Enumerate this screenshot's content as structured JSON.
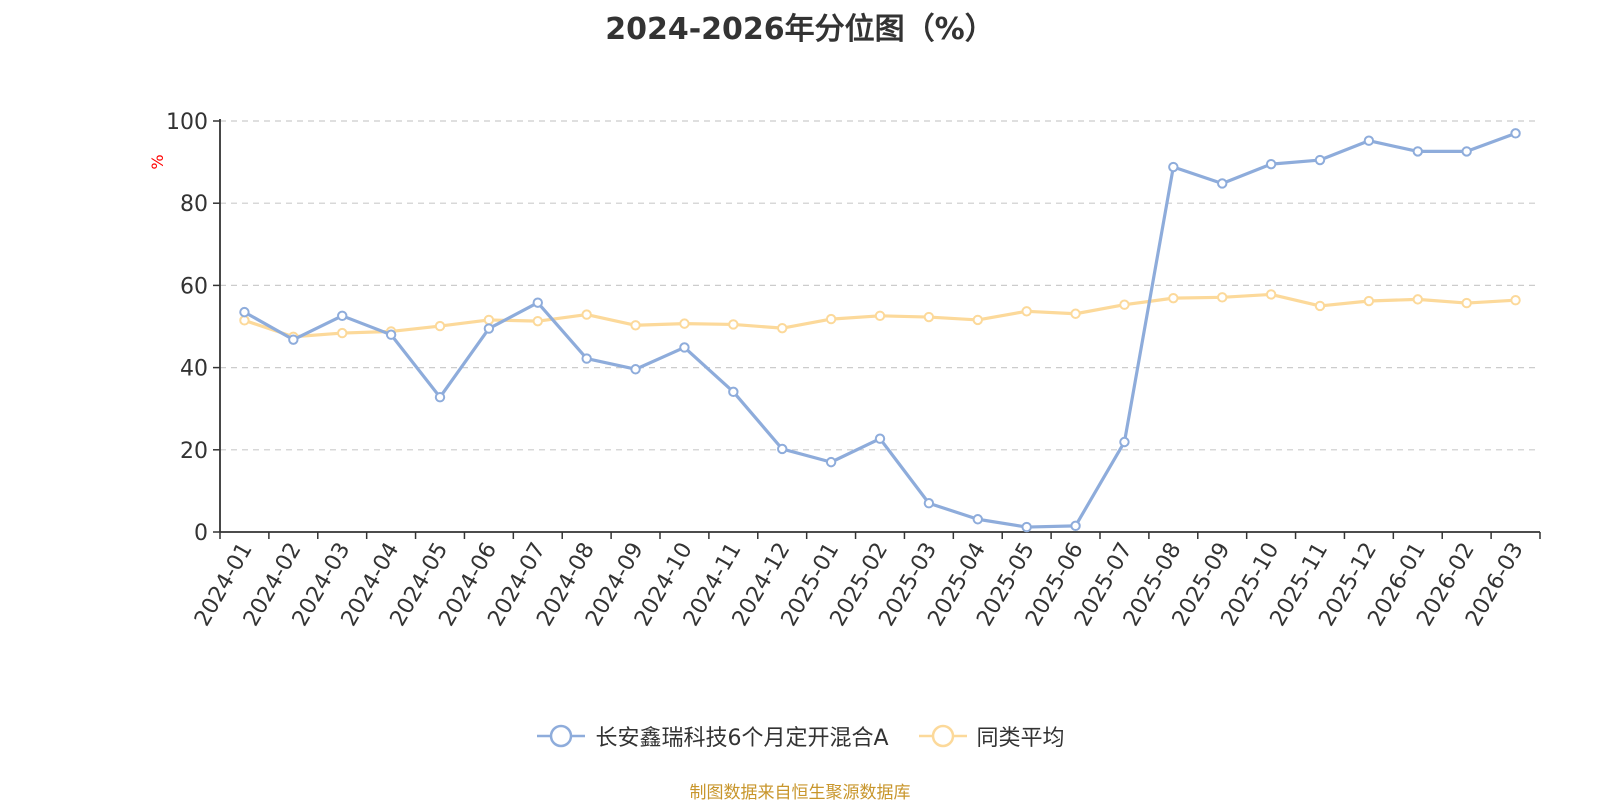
{
  "title": "2024-2026年分位图（%）",
  "source_note": "制图数据来自恒生聚源数据库",
  "colors": {
    "fund": "#8eacdb",
    "average": "#fcd99a",
    "axis": "#333333",
    "grid": "#cccccc",
    "unit": "#ff0000",
    "source": "#c8962c"
  },
  "chart_data": {
    "type": "line",
    "title": "2024-2026年分位图（%）",
    "ylabel": "%",
    "xlabel": "",
    "ylim": [
      0,
      100
    ],
    "yticks": [
      0,
      20,
      40,
      60,
      80,
      100
    ],
    "grid": true,
    "legend_position": "bottom",
    "categories": [
      "2024-01",
      "2024-02",
      "2024-03",
      "2024-04",
      "2024-05",
      "2024-06",
      "2024-07",
      "2024-08",
      "2024-09",
      "2024-10",
      "2024-11",
      "2024-12",
      "2025-01",
      "2025-02",
      "2025-03",
      "2025-04",
      "2025-05",
      "2025-06",
      "2025-07",
      "2025-08",
      "2025-09",
      "2025-10",
      "2025-11",
      "2025-12",
      "2026-01",
      "2026-02",
      "2026-03"
    ],
    "series": [
      {
        "name": "长安鑫瑞科技6个月定开混合A",
        "color": "#8eacdb",
        "values": [
          53.5,
          46.8,
          52.6,
          48.0,
          32.8,
          49.5,
          55.8,
          42.2,
          39.6,
          44.9,
          34.1,
          20.2,
          17.0,
          22.7,
          7.0,
          3.1,
          1.2,
          1.5,
          21.9,
          88.8,
          84.8,
          89.5,
          90.5,
          95.2,
          92.6,
          92.6,
          97.0
        ]
      },
      {
        "name": "同类平均",
        "color": "#fcd99a",
        "values": [
          51.5,
          47.5,
          48.4,
          48.8,
          50.1,
          51.6,
          51.3,
          52.9,
          50.3,
          50.7,
          50.5,
          49.6,
          51.8,
          52.6,
          52.3,
          51.6,
          53.7,
          53.1,
          55.3,
          56.9,
          57.1,
          57.8,
          55.0,
          56.2,
          56.6,
          55.7,
          56.4
        ]
      }
    ]
  }
}
